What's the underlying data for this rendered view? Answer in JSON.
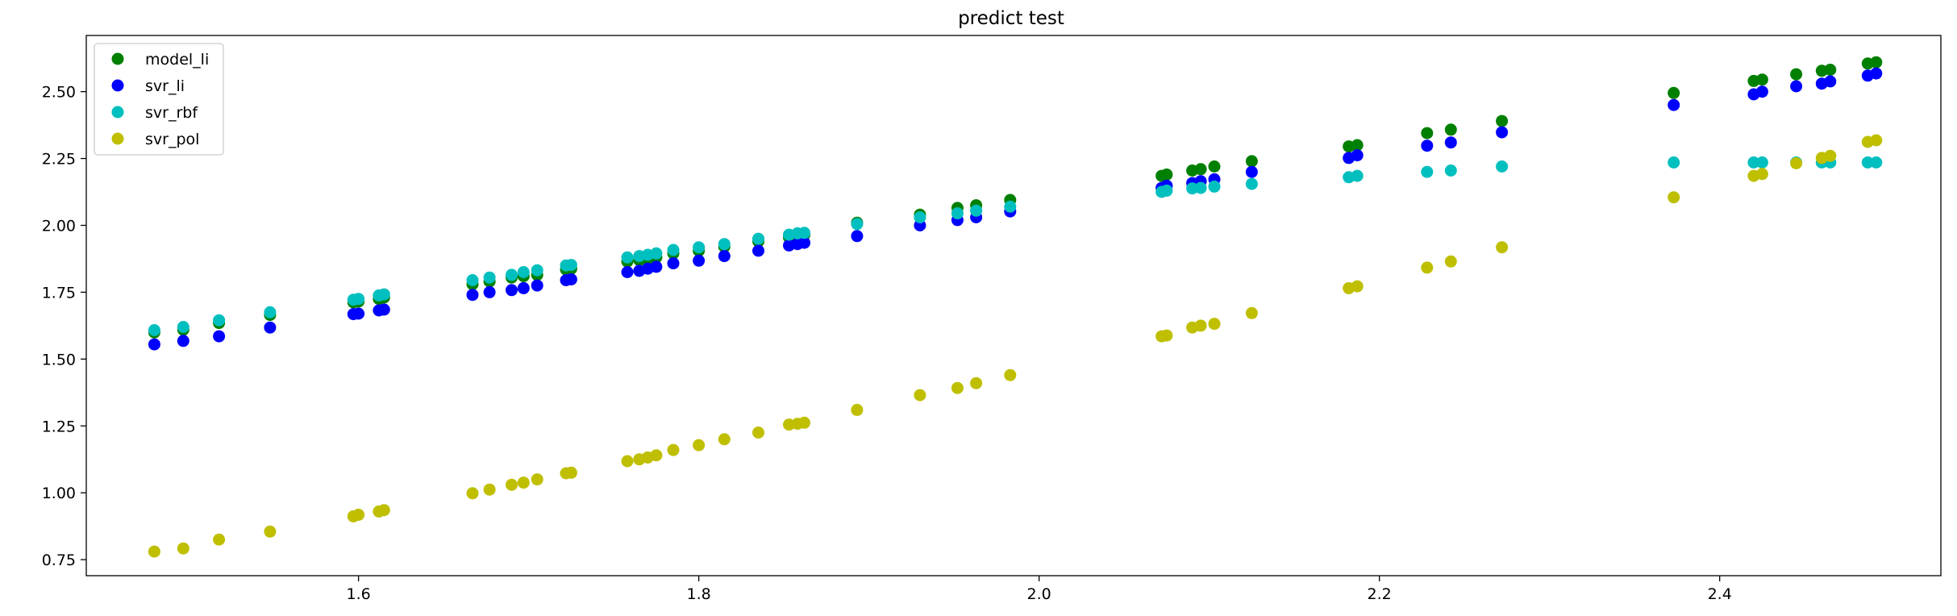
{
  "chart_data": {
    "type": "scatter",
    "title": "predict test",
    "xlabel": "",
    "ylabel": "",
    "xlim": [
      1.44,
      2.53
    ],
    "ylim": [
      0.69,
      2.71
    ],
    "xticks": [
      1.6,
      1.8,
      2.0,
      2.2,
      2.4
    ],
    "xtick_labels": [
      "1.6",
      "1.8",
      "2.0",
      "2.2",
      "2.4"
    ],
    "yticks": [
      0.75,
      1.0,
      1.25,
      1.5,
      1.75,
      2.0,
      2.25,
      2.5
    ],
    "ytick_labels": [
      "0.75",
      "1.00",
      "1.25",
      "1.50",
      "1.75",
      "2.00",
      "2.25",
      "2.50"
    ],
    "grid": false,
    "legend_position": "top-left",
    "series": [
      {
        "name": "model_li",
        "color": "#008000",
        "x": [
          1.48,
          1.497,
          1.518,
          1.548,
          1.597,
          1.6,
          1.612,
          1.615,
          1.667,
          1.677,
          1.69,
          1.697,
          1.705,
          1.722,
          1.725,
          1.758,
          1.765,
          1.77,
          1.775,
          1.785,
          1.8,
          1.815,
          1.835,
          1.853,
          1.858,
          1.862,
          1.893,
          1.93,
          1.952,
          1.963,
          1.983,
          2.072,
          2.075,
          2.09,
          2.095,
          2.103,
          2.125,
          2.182,
          2.187,
          2.228,
          2.242,
          2.272,
          2.373,
          2.42,
          2.425,
          2.445,
          2.46,
          2.465,
          2.487,
          2.492
        ],
        "y": [
          1.6,
          1.61,
          1.635,
          1.665,
          1.712,
          1.715,
          1.725,
          1.73,
          1.78,
          1.79,
          1.805,
          1.81,
          1.815,
          1.835,
          1.838,
          1.865,
          1.87,
          1.875,
          1.88,
          1.895,
          1.905,
          1.92,
          1.94,
          1.955,
          1.96,
          1.965,
          2.01,
          2.04,
          2.065,
          2.075,
          2.095,
          2.185,
          2.19,
          2.205,
          2.21,
          2.22,
          2.24,
          2.295,
          2.3,
          2.345,
          2.358,
          2.39,
          2.495,
          2.54,
          2.545,
          2.565,
          2.578,
          2.582,
          2.605,
          2.61
        ]
      },
      {
        "name": "svr_li",
        "color": "#0000ff",
        "x": [
          1.48,
          1.497,
          1.518,
          1.548,
          1.597,
          1.6,
          1.612,
          1.615,
          1.667,
          1.677,
          1.69,
          1.697,
          1.705,
          1.722,
          1.725,
          1.758,
          1.765,
          1.77,
          1.775,
          1.785,
          1.8,
          1.815,
          1.835,
          1.853,
          1.858,
          1.862,
          1.893,
          1.93,
          1.952,
          1.963,
          1.983,
          2.072,
          2.075,
          2.09,
          2.095,
          2.103,
          2.125,
          2.182,
          2.187,
          2.228,
          2.242,
          2.272,
          2.373,
          2.42,
          2.425,
          2.445,
          2.46,
          2.465,
          2.487,
          2.492
        ],
        "y": [
          1.555,
          1.568,
          1.585,
          1.618,
          1.668,
          1.67,
          1.682,
          1.685,
          1.74,
          1.75,
          1.758,
          1.765,
          1.775,
          1.795,
          1.798,
          1.825,
          1.83,
          1.838,
          1.845,
          1.858,
          1.868,
          1.885,
          1.905,
          1.925,
          1.93,
          1.935,
          1.96,
          2.0,
          2.02,
          2.03,
          2.052,
          2.14,
          2.148,
          2.158,
          2.165,
          2.172,
          2.2,
          2.252,
          2.262,
          2.298,
          2.31,
          2.348,
          2.45,
          2.49,
          2.5,
          2.52,
          2.53,
          2.538,
          2.56,
          2.568
        ]
      },
      {
        "name": "svr_rbf",
        "color": "#00bfbf",
        "x": [
          1.48,
          1.497,
          1.518,
          1.548,
          1.597,
          1.6,
          1.612,
          1.615,
          1.667,
          1.677,
          1.69,
          1.697,
          1.705,
          1.722,
          1.725,
          1.758,
          1.765,
          1.77,
          1.775,
          1.785,
          1.8,
          1.815,
          1.835,
          1.853,
          1.858,
          1.862,
          1.893,
          1.93,
          1.952,
          1.963,
          1.983,
          2.072,
          2.075,
          2.09,
          2.095,
          2.103,
          2.125,
          2.182,
          2.187,
          2.228,
          2.242,
          2.272,
          2.373,
          2.42,
          2.425,
          2.445,
          2.46,
          2.465,
          2.487,
          2.492
        ],
        "y": [
          1.608,
          1.62,
          1.645,
          1.675,
          1.722,
          1.725,
          1.738,
          1.742,
          1.795,
          1.805,
          1.815,
          1.825,
          1.832,
          1.85,
          1.852,
          1.88,
          1.885,
          1.89,
          1.895,
          1.908,
          1.918,
          1.93,
          1.95,
          1.965,
          1.97,
          1.972,
          2.005,
          2.03,
          2.045,
          2.055,
          2.07,
          2.125,
          2.13,
          2.138,
          2.14,
          2.145,
          2.155,
          2.18,
          2.185,
          2.2,
          2.205,
          2.22,
          2.235,
          2.235,
          2.235,
          2.235,
          2.235,
          2.235,
          2.235,
          2.235
        ]
      },
      {
        "name": "svr_pol",
        "color": "#bfbf00",
        "x": [
          1.48,
          1.497,
          1.518,
          1.548,
          1.597,
          1.6,
          1.612,
          1.615,
          1.667,
          1.677,
          1.69,
          1.697,
          1.705,
          1.722,
          1.725,
          1.758,
          1.765,
          1.77,
          1.775,
          1.785,
          1.8,
          1.815,
          1.835,
          1.853,
          1.858,
          1.862,
          1.893,
          1.93,
          1.952,
          1.963,
          1.983,
          2.072,
          2.075,
          2.09,
          2.095,
          2.103,
          2.125,
          2.182,
          2.187,
          2.228,
          2.242,
          2.272,
          2.373,
          2.42,
          2.425,
          2.445,
          2.46,
          2.465,
          2.487,
          2.492
        ],
        "y": [
          0.78,
          0.792,
          0.825,
          0.855,
          0.912,
          0.918,
          0.93,
          0.935,
          0.998,
          1.012,
          1.03,
          1.038,
          1.05,
          1.073,
          1.075,
          1.118,
          1.125,
          1.132,
          1.14,
          1.16,
          1.178,
          1.2,
          1.225,
          1.255,
          1.258,
          1.262,
          1.31,
          1.365,
          1.392,
          1.41,
          1.44,
          1.585,
          1.588,
          1.618,
          1.625,
          1.632,
          1.672,
          1.765,
          1.772,
          1.842,
          1.865,
          1.918,
          2.105,
          2.185,
          2.192,
          2.232,
          2.252,
          2.26,
          2.312,
          2.318
        ]
      }
    ]
  }
}
